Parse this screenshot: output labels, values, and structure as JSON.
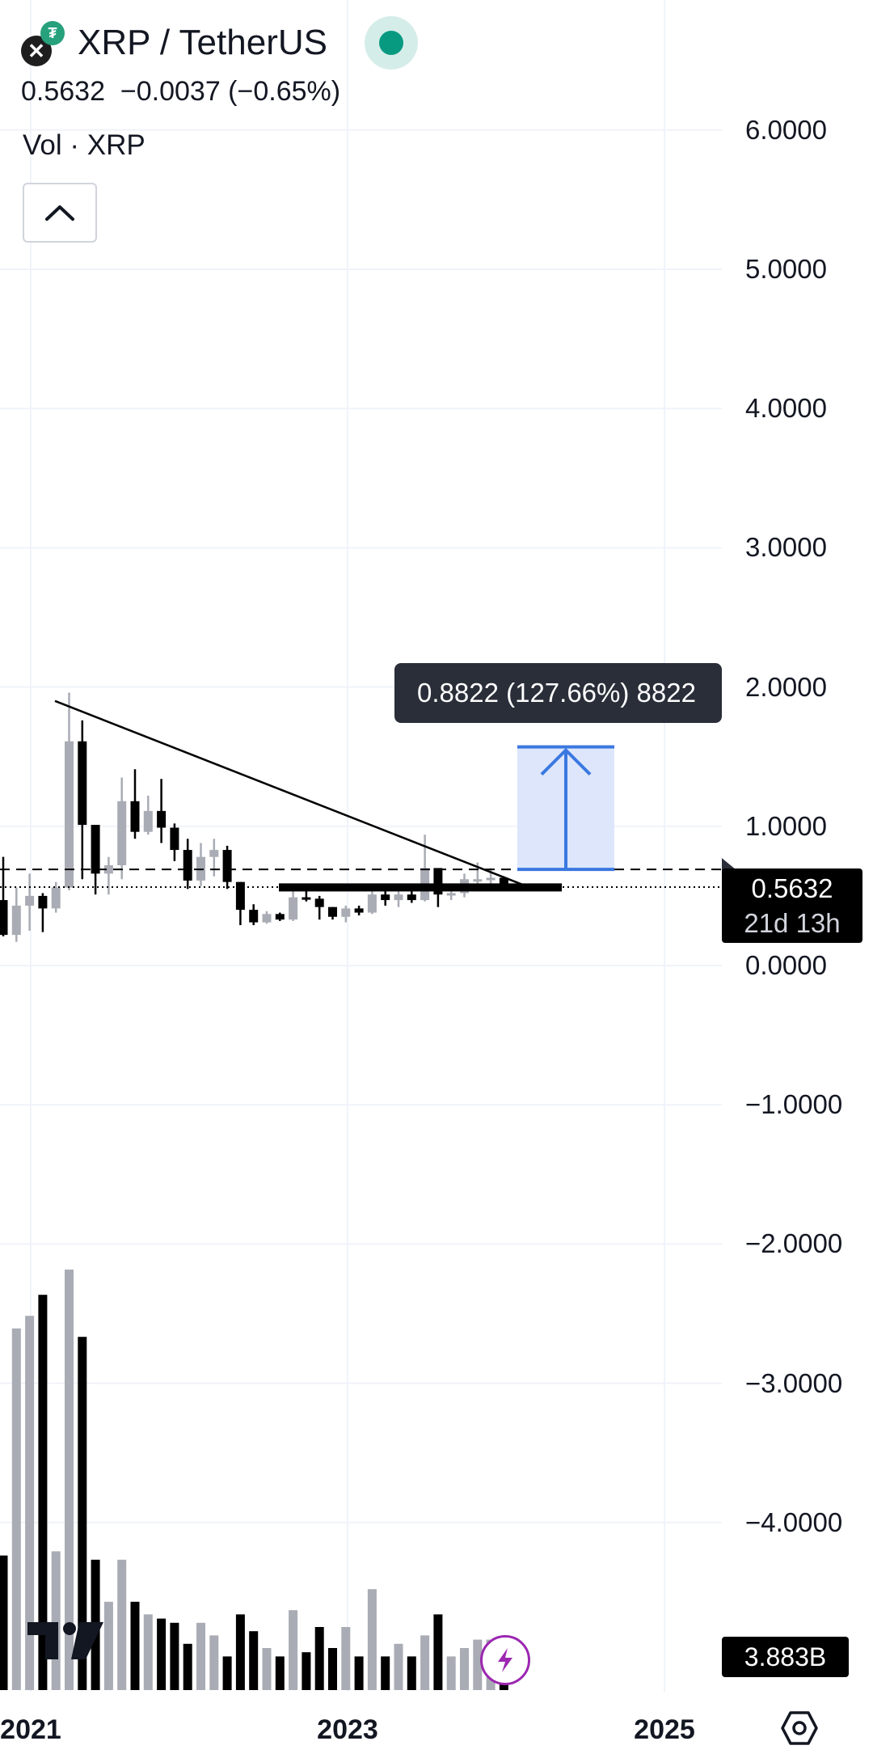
{
  "header": {
    "base_icon": "xrp-icon",
    "quote_icon": "tether-icon",
    "symbol": "XRP / TetherUS",
    "status": "market-open-dot",
    "price_line": "0.5632  −0.0037 (−0.65%)",
    "volume_label": "Vol · XRP",
    "collapse_icon": "chevron-up-icon"
  },
  "colors": {
    "up_candle": "#a9acb4",
    "down_candle": "#000000",
    "measure_fill": "#dde6fb",
    "measure_line": "#3a78e0",
    "market_open": "#089981",
    "bolt": "#9c27b0"
  },
  "axis": {
    "y_labels": [
      "6.0000",
      "5.0000",
      "4.0000",
      "3.0000",
      "2.0000",
      "1.0000",
      "0.0000",
      "−1.0000",
      "−2.0000",
      "−3.0000",
      "−4.0000"
    ],
    "x_labels": [
      "2021",
      "2023",
      "2025"
    ]
  },
  "measure": {
    "label": "0.8822 (127.66%) 8822"
  },
  "last_price": {
    "value": "0.5632",
    "countdown": "21d 13h"
  },
  "volume_value": "3.883B",
  "footer": {
    "logo": "tradingview-logo",
    "bolt_icon": "lightning-icon",
    "settings_icon": "settings-icon"
  },
  "chart_data": {
    "type": "candlestick",
    "interval": "monthly",
    "y_range": [
      -4.5,
      6.5
    ],
    "trendline": {
      "from": [
        "2021-04",
        1.9
      ],
      "to": [
        "2024-02",
        0.55
      ]
    },
    "horizontal_level": 0.69,
    "measure_range": {
      "from": 0.69,
      "to": 1.57
    },
    "candles": [
      {
        "o": 0.47,
        "h": 0.78,
        "l": 0.21,
        "c": 0.22
      },
      {
        "o": 0.22,
        "h": 0.56,
        "l": 0.17,
        "c": 0.43
      },
      {
        "o": 0.43,
        "h": 0.66,
        "l": 0.25,
        "c": 0.5
      },
      {
        "o": 0.5,
        "h": 0.52,
        "l": 0.24,
        "c": 0.41
      },
      {
        "o": 0.41,
        "h": 0.6,
        "l": 0.38,
        "c": 0.56
      },
      {
        "o": 0.56,
        "h": 1.96,
        "l": 0.54,
        "c": 1.61
      },
      {
        "o": 1.61,
        "h": 1.76,
        "l": 0.62,
        "c": 1.01
      },
      {
        "o": 1.01,
        "h": 1.01,
        "l": 0.51,
        "c": 0.66
      },
      {
        "o": 0.66,
        "h": 0.78,
        "l": 0.51,
        "c": 0.72
      },
      {
        "o": 0.72,
        "h": 1.35,
        "l": 0.62,
        "c": 1.18
      },
      {
        "o": 1.18,
        "h": 1.41,
        "l": 0.91,
        "c": 0.96
      },
      {
        "o": 0.96,
        "h": 1.22,
        "l": 0.94,
        "c": 1.11
      },
      {
        "o": 1.11,
        "h": 1.34,
        "l": 0.88,
        "c": 0.99
      },
      {
        "o": 0.99,
        "h": 1.02,
        "l": 0.75,
        "c": 0.83
      },
      {
        "o": 0.83,
        "h": 0.91,
        "l": 0.55,
        "c": 0.61
      },
      {
        "o": 0.61,
        "h": 0.88,
        "l": 0.57,
        "c": 0.78
      },
      {
        "o": 0.78,
        "h": 0.91,
        "l": 0.64,
        "c": 0.83
      },
      {
        "o": 0.83,
        "h": 0.86,
        "l": 0.55,
        "c": 0.6
      },
      {
        "o": 0.6,
        "h": 0.6,
        "l": 0.29,
        "c": 0.4
      },
      {
        "o": 0.4,
        "h": 0.44,
        "l": 0.29,
        "c": 0.31
      },
      {
        "o": 0.31,
        "h": 0.39,
        "l": 0.3,
        "c": 0.37
      },
      {
        "o": 0.37,
        "h": 0.38,
        "l": 0.32,
        "c": 0.33
      },
      {
        "o": 0.33,
        "h": 0.56,
        "l": 0.32,
        "c": 0.49
      },
      {
        "o": 0.49,
        "h": 0.56,
        "l": 0.46,
        "c": 0.48
      },
      {
        "o": 0.48,
        "h": 0.5,
        "l": 0.33,
        "c": 0.42
      },
      {
        "o": 0.42,
        "h": 0.42,
        "l": 0.33,
        "c": 0.35
      },
      {
        "o": 0.35,
        "h": 0.43,
        "l": 0.31,
        "c": 0.41
      },
      {
        "o": 0.41,
        "h": 0.43,
        "l": 0.36,
        "c": 0.38
      },
      {
        "o": 0.38,
        "h": 0.58,
        "l": 0.37,
        "c": 0.51
      },
      {
        "o": 0.51,
        "h": 0.55,
        "l": 0.43,
        "c": 0.47
      },
      {
        "o": 0.47,
        "h": 0.55,
        "l": 0.42,
        "c": 0.51
      },
      {
        "o": 0.51,
        "h": 0.54,
        "l": 0.45,
        "c": 0.47
      },
      {
        "o": 0.47,
        "h": 0.94,
        "l": 0.46,
        "c": 0.7
      },
      {
        "o": 0.7,
        "h": 0.7,
        "l": 0.42,
        "c": 0.51
      },
      {
        "o": 0.51,
        "h": 0.56,
        "l": 0.47,
        "c": 0.52
      },
      {
        "o": 0.52,
        "h": 0.66,
        "l": 0.49,
        "c": 0.62
      },
      {
        "o": 0.62,
        "h": 0.74,
        "l": 0.58,
        "c": 0.62
      },
      {
        "o": 0.62,
        "h": 0.7,
        "l": 0.56,
        "c": 0.63
      },
      {
        "o": 0.63,
        "h": 0.64,
        "l": 0.55,
        "c": 0.56
      }
    ],
    "volumes": [
      32,
      86,
      89,
      94,
      33,
      100,
      84,
      31,
      21,
      31,
      21,
      18,
      17,
      16,
      11,
      16,
      13,
      8,
      18,
      14,
      10,
      8,
      19,
      9,
      15,
      10,
      15,
      8,
      24,
      8,
      11,
      8,
      13,
      18,
      8,
      10,
      12,
      12,
      6
    ]
  }
}
